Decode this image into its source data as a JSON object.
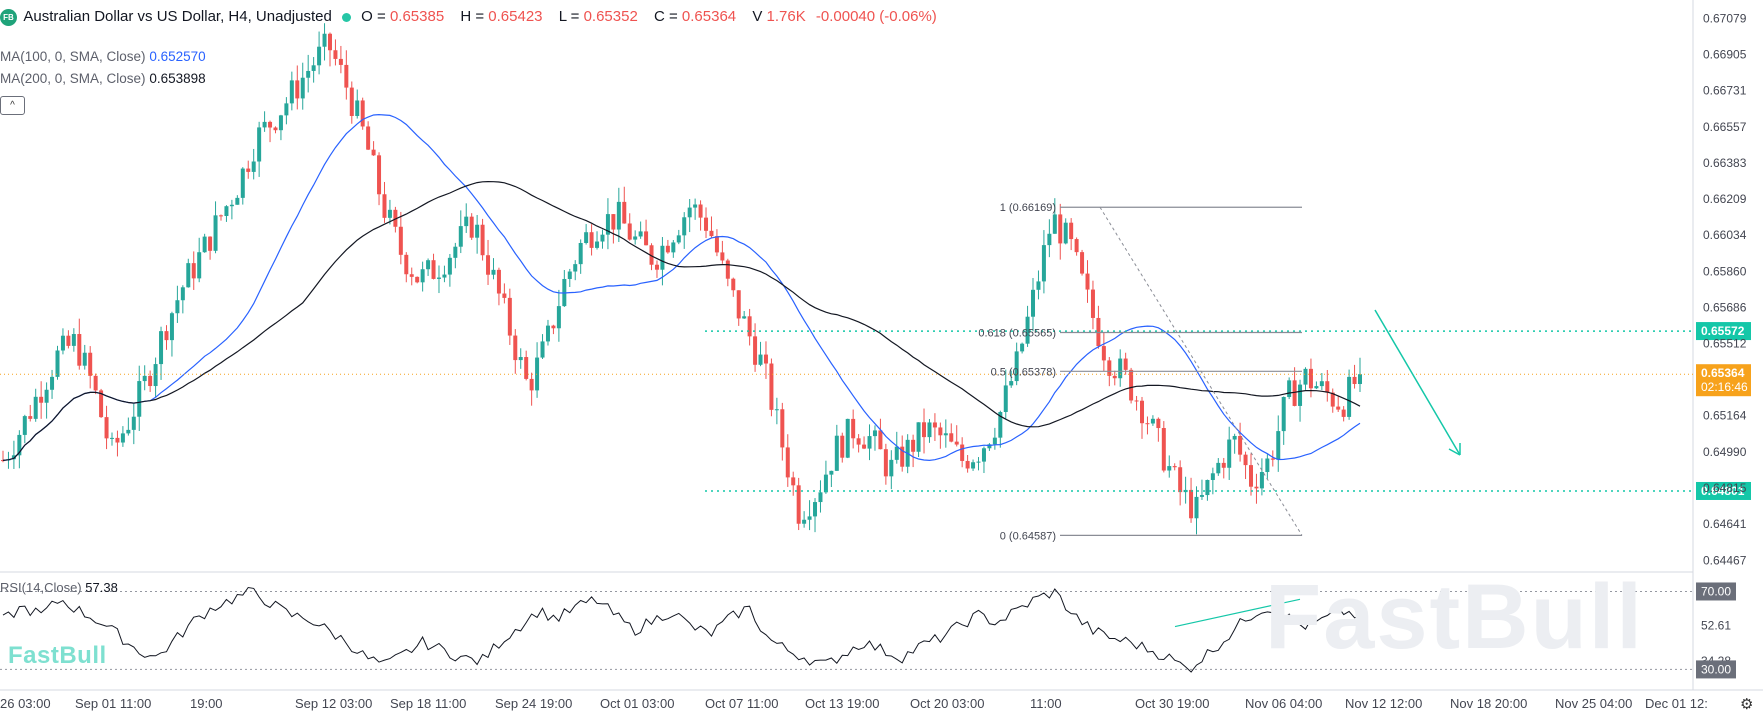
{
  "header": {
    "logo_text": "FB",
    "symbol_title": "Australian Dollar vs US Dollar, H4, Unadjusted",
    "open_label": "O =",
    "open_value": "0.65385",
    "high_label": "H =",
    "high_value": "0.65423",
    "low_label": "L =",
    "low_value": "0.65352",
    "close_label": "C =",
    "close_value": "0.65364",
    "volume_label": "V",
    "volume_value": "1.76K",
    "change_value": "-0.00040 (-0.06%)"
  },
  "indicators": {
    "ma100_label": "MA(100, 0, SMA, Close)",
    "ma100_value": "0.652570",
    "ma200_label": "MA(200, 0, SMA, Close)",
    "ma200_value": "0.653898",
    "collapse_glyph": "^",
    "rsi_label": "RSI(14,Close)",
    "rsi_value": "57.38"
  },
  "branding": {
    "watermark_small": "FastBull",
    "watermark_large": "FastBull"
  },
  "icons": {
    "settings": "gear-icon"
  },
  "colors": {
    "up": "#26a69a",
    "down": "#ef5350",
    "ma100": "#2962ff",
    "ma200": "#131722",
    "level": "#14c7a8",
    "price_marker": "#f7a21b"
  },
  "chart_data": {
    "type": "candlestick",
    "title": "Australian Dollar vs US Dollar, H4, Unadjusted",
    "y_axis_ticks": [
      "0.67079",
      "0.66905",
      "0.66731",
      "0.66557",
      "0.66383",
      "0.66209",
      "0.66034",
      "0.65860",
      "0.65686",
      "0.65512",
      "0.65164",
      "0.64990",
      "0.64815",
      "0.64641",
      "0.64467"
    ],
    "ylim": [
      0.6442,
      0.6712
    ],
    "x_axis_labels": [
      "26 03:00",
      "Sep 01 11:00",
      "19:00",
      "Sep 12 03:00",
      "Sep 18 11:00",
      "Sep 24 19:00",
      "Oct 01 03:00",
      "Oct 07 11:00",
      "Oct 13 19:00",
      "Oct 20 03:00",
      "11:00",
      "Oct 30 19:00",
      "Nov 06 04:00",
      "Nov 12 12:00",
      "Nov 18 20:00",
      "Nov 25 04:00",
      "Dec 01 12:"
    ],
    "approx_close_path": [
      0.6495,
      0.651,
      0.6528,
      0.6545,
      0.6552,
      0.653,
      0.6498,
      0.6515,
      0.6535,
      0.656,
      0.658,
      0.6595,
      0.6612,
      0.6628,
      0.665,
      0.666,
      0.6672,
      0.6685,
      0.6695,
      0.6675,
      0.665,
      0.6618,
      0.6595,
      0.6582,
      0.6588,
      0.6598,
      0.661,
      0.6585,
      0.6558,
      0.653,
      0.655,
      0.658,
      0.66,
      0.661,
      0.6612,
      0.66,
      0.6592,
      0.6605,
      0.6618,
      0.6608,
      0.658,
      0.656,
      0.654,
      0.6505,
      0.647,
      0.648,
      0.65,
      0.651,
      0.6505,
      0.649,
      0.65,
      0.651,
      0.6505,
      0.6495,
      0.65,
      0.6515,
      0.654,
      0.6575,
      0.6612,
      0.6598,
      0.657,
      0.6545,
      0.6535,
      0.652,
      0.65,
      0.648,
      0.647,
      0.649,
      0.6505,
      0.6485,
      0.6495,
      0.6525,
      0.6535,
      0.6528,
      0.6522,
      0.65364
    ],
    "series": [
      {
        "name": "MA(100, 0, SMA, Close)",
        "current": 0.65257
      },
      {
        "name": "MA(200, 0, SMA, Close)",
        "current": 0.653898
      }
    ],
    "current_price": {
      "value": "0.65364",
      "countdown": "02:16:46"
    },
    "horizontal_levels": [
      {
        "label": "0.65572",
        "value": 0.65572
      },
      {
        "label": "0.64801",
        "value": 0.64801
      }
    ],
    "fibonacci": [
      {
        "label": "1 (0.66169)",
        "value": 0.66169
      },
      {
        "label": "0.618 (0.65565)",
        "value": 0.65565
      },
      {
        "label": "0.5 (0.65378)",
        "value": 0.65378
      },
      {
        "label": "0 (0.64587)",
        "value": 0.64587
      }
    ],
    "rsi": {
      "name": "RSI(14,Close)",
      "current": 57.38,
      "ylim": [
        22,
        80
      ],
      "levels": [
        70,
        30
      ],
      "tick_labels": [
        "70.00",
        "52.61",
        "34.28",
        "30.00"
      ],
      "approx_path": [
        55,
        62,
        58,
        66,
        60,
        55,
        48,
        40,
        36,
        45,
        55,
        62,
        66,
        70,
        64,
        58,
        56,
        50,
        44,
        36,
        32,
        38,
        44,
        40,
        36,
        34,
        44,
        52,
        60,
        56,
        62,
        66,
        58,
        50,
        55,
        60,
        52,
        48,
        56,
        62,
        46,
        40,
        36,
        32,
        38,
        44,
        40,
        36,
        42,
        46,
        52,
        58,
        54,
        60,
        66,
        70,
        58,
        50,
        46,
        44,
        40,
        36,
        30,
        38,
        46,
        56,
        62,
        58,
        52,
        55,
        60,
        57.38
      ]
    }
  }
}
